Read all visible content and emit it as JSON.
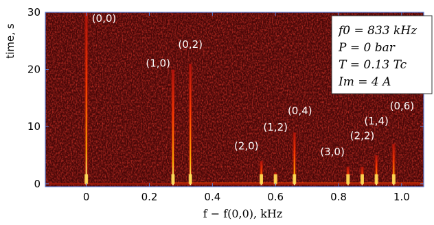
{
  "chart_data": {
    "type": "heatmap",
    "title": "",
    "xlabel": "f − f(0,0), kHz",
    "ylabel": "time, s",
    "xlim": [
      -0.13,
      1.07
    ],
    "ylim": [
      -0.5,
      30
    ],
    "xticks": [
      0,
      0.2,
      0.4,
      0.6,
      0.8,
      1.0
    ],
    "xtick_labels": [
      "0",
      "0.2",
      "0.4",
      "0.6",
      "0.8",
      "1.0"
    ],
    "yticks": [
      0,
      10,
      20,
      30
    ],
    "ytick_labels": [
      "0",
      "10",
      "20",
      "30"
    ],
    "colormap": [
      "#3a0000",
      "#8a1010",
      "#ff5a00",
      "#ffe066"
    ],
    "background_color": "#4a0808",
    "axis_color": "#5b7fd6",
    "peaks": [
      {
        "mode": "(0,0)",
        "f": 0.0,
        "duration_s": 30
      },
      {
        "mode": "(1,0)",
        "f": 0.275,
        "duration_s": 20
      },
      {
        "mode": "(0,2)",
        "f": 0.33,
        "duration_s": 21
      },
      {
        "mode": "(2,0)",
        "f": 0.555,
        "duration_s": 4
      },
      {
        "mode": "(1,2)",
        "f": 0.6,
        "duration_s": 2
      },
      {
        "mode": "(0,4)",
        "f": 0.66,
        "duration_s": 9
      },
      {
        "mode": "(3,0)",
        "f": 0.83,
        "duration_s": 3
      },
      {
        "mode": "(2,2)",
        "f": 0.875,
        "duration_s": 3
      },
      {
        "mode": "(1,4)",
        "f": 0.92,
        "duration_s": 5
      },
      {
        "mode": "(0,6)",
        "f": 0.975,
        "duration_s": 7
      }
    ],
    "legend": {
      "position": "top-right",
      "lines": [
        "f0 = 833 kHz",
        "P = 0 bar",
        "T = 0.13 Tc",
        "Im = 4 A"
      ]
    }
  }
}
